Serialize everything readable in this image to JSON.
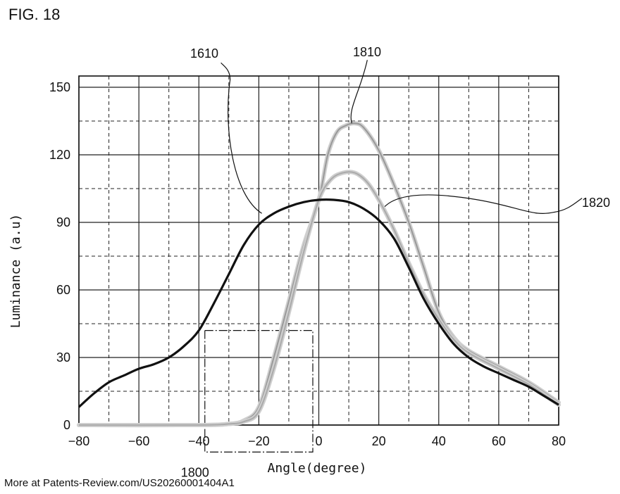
{
  "figure_label": "FIG. 18",
  "footer_text": "More at Patents-Review.com/US20260001404A1",
  "chart_data": {
    "type": "line",
    "title": "",
    "xlabel": "Angle(degree)",
    "ylabel": "Luminance (a.u)",
    "xlim": [
      -80,
      80
    ],
    "ylim": [
      0,
      155
    ],
    "x_ticks": [
      -80,
      -60,
      -40,
      -20,
      0,
      20,
      40,
      60,
      80
    ],
    "y_ticks": [
      0,
      30,
      60,
      90,
      120,
      150
    ],
    "grid": true,
    "legend": "none",
    "series": [
      {
        "color": "#111111",
        "x": [
          -80,
          -75,
          -70,
          -65,
          -60,
          -55,
          -50,
          -45,
          -40,
          -35,
          -30,
          -25,
          -20,
          -15,
          -10,
          -5,
          0,
          5,
          10,
          15,
          20,
          25,
          30,
          35,
          40,
          45,
          50,
          55,
          60,
          65,
          70,
          75,
          80
        ],
        "values": [
          8,
          14,
          19,
          22,
          25,
          27,
          30,
          35,
          42,
          54,
          67,
          80,
          89,
          94,
          97,
          99,
          100,
          100,
          99,
          96,
          91,
          83,
          70,
          56,
          45,
          36,
          30,
          26,
          23,
          20,
          17,
          13,
          9
        ]
      },
      {
        "color": "#999999",
        "x": [
          -80,
          -40,
          -30,
          -25,
          -20,
          -15,
          -10,
          -5,
          0,
          3,
          6,
          9,
          12,
          15,
          20,
          25,
          30,
          35,
          40,
          45,
          50,
          60,
          70,
          80
        ],
        "values": [
          0,
          0,
          0.5,
          2,
          8,
          30,
          55,
          80,
          100,
          120,
          130,
          133,
          134,
          132,
          122,
          107,
          90,
          70,
          50,
          39,
          33,
          26,
          19,
          10
        ]
      },
      {
        "color": "#aaaaaa",
        "x": [
          -80,
          -40,
          -30,
          -25,
          -20,
          -15,
          -10,
          -5,
          0,
          4,
          8,
          12,
          16,
          20,
          25,
          30,
          35,
          40,
          45,
          50,
          60,
          70,
          80
        ],
        "values": [
          0,
          0,
          0.5,
          1.5,
          6,
          25,
          50,
          77,
          100,
          109,
          112,
          112,
          108,
          100,
          87,
          72,
          58,
          47,
          38,
          32,
          25,
          18,
          9
        ]
      }
    ],
    "annotations": [
      {
        "label": "1610",
        "series": 0,
        "at_x": -19,
        "at_y": 94
      },
      {
        "label": "1810",
        "series": 1,
        "at_x": 11,
        "at_y": 134
      },
      {
        "label": "1820",
        "series": 2,
        "at_x": 22,
        "at_y": 97
      },
      {
        "label": "1800",
        "region": {
          "x": [
            -38,
            -2
          ],
          "y": [
            -12,
            42
          ]
        }
      }
    ]
  }
}
